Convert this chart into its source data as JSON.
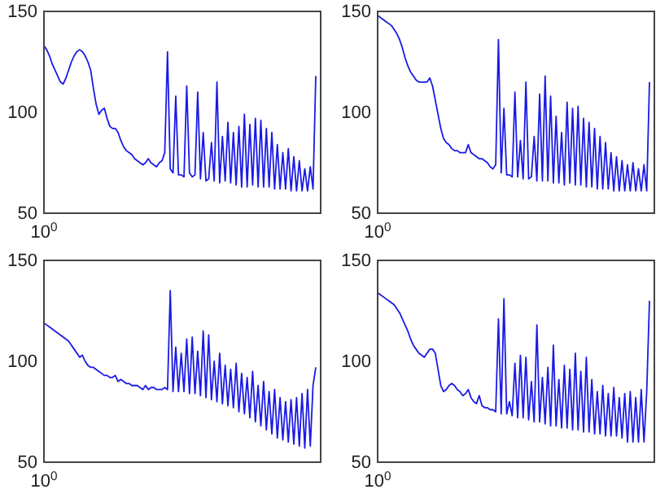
{
  "chart_data": [
    {
      "type": "line",
      "color": "#1a1ae6",
      "ylim": [
        50,
        150
      ],
      "yticks": [
        50,
        100,
        150
      ],
      "categories": [
        "10$^{0}$",
        null,
        null,
        null,
        null,
        null,
        null,
        null,
        null,
        null,
        null,
        null,
        null,
        null,
        null,
        null,
        null,
        null,
        null,
        null,
        null,
        null,
        null,
        null,
        null,
        null,
        null,
        null,
        null,
        null,
        null,
        null,
        null,
        null,
        null,
        null,
        null,
        null,
        null,
        null,
        null,
        null,
        null,
        null,
        null,
        null,
        null,
        null,
        null,
        null,
        null,
        null,
        null,
        null,
        null,
        null,
        null,
        null,
        null,
        null,
        null,
        null,
        null,
        null,
        null,
        null,
        null,
        null,
        null,
        null,
        null,
        null,
        null,
        null,
        null,
        null,
        null,
        null,
        null,
        null,
        null,
        null,
        null,
        null,
        null,
        null,
        null,
        null,
        null,
        null,
        null,
        null,
        null,
        null,
        null,
        null,
        null,
        null,
        null,
        null
      ],
      "values": [
        133,
        131,
        128,
        124,
        121,
        118,
        115,
        114,
        117,
        121,
        125,
        128,
        130,
        131,
        130,
        128,
        125,
        121,
        112,
        104,
        99,
        101,
        102,
        97,
        93,
        92,
        92,
        90,
        86,
        83,
        81,
        80,
        79,
        77,
        76,
        75,
        74,
        75,
        77,
        75,
        74,
        73,
        75,
        76,
        80,
        130,
        72,
        70,
        108,
        69,
        69,
        68,
        113,
        70,
        68,
        69,
        110,
        67,
        90,
        66,
        67,
        85,
        66,
        115,
        65,
        88,
        66,
        95,
        65,
        90,
        64,
        93,
        63,
        99,
        63,
        94,
        64,
        97,
        63,
        96,
        63,
        92,
        63,
        90,
        62,
        84,
        62,
        80,
        62,
        82,
        61,
        78,
        61,
        76,
        61,
        72,
        61,
        73,
        62,
        118
      ]
    },
    {
      "type": "line",
      "color": "#1a1ae6",
      "ylim": [
        50,
        150
      ],
      "yticks": [
        50,
        100,
        150
      ],
      "categories": [
        "10$^{0}$",
        null,
        null,
        null,
        null,
        null,
        null,
        null,
        null,
        null,
        null,
        null,
        null,
        null,
        null,
        null,
        null,
        null,
        null,
        null,
        null,
        null,
        null,
        null,
        null,
        null,
        null,
        null,
        null,
        null,
        null,
        null,
        null,
        null,
        null,
        null,
        null,
        null,
        null,
        null,
        null,
        null,
        null,
        null,
        null,
        null,
        null,
        null,
        null,
        null,
        null,
        null,
        null,
        null,
        null,
        null,
        null,
        null,
        null,
        null,
        null,
        null,
        null,
        null,
        null,
        null,
        null,
        null,
        null,
        null,
        null,
        null,
        null,
        null,
        null,
        null,
        null,
        null,
        null,
        null,
        null,
        null,
        null,
        null,
        null,
        null,
        null,
        null,
        null,
        null,
        null,
        null,
        null,
        null,
        null,
        null,
        null,
        null,
        null,
        null
      ],
      "values": [
        148,
        147,
        146,
        145,
        144,
        143,
        141,
        139,
        136,
        132,
        127,
        123,
        120,
        118,
        116,
        115,
        115,
        115,
        115,
        117,
        113,
        106,
        99,
        92,
        87,
        85,
        84,
        82,
        81,
        81,
        80,
        80,
        80,
        84,
        80,
        79,
        78,
        77,
        77,
        76,
        75,
        73,
        72,
        74,
        136,
        70,
        102,
        69,
        69,
        68,
        110,
        68,
        86,
        67,
        115,
        67,
        68,
        88,
        66,
        109,
        66,
        118,
        66,
        108,
        65,
        98,
        65,
        90,
        64,
        105,
        65,
        102,
        64,
        103,
        64,
        97,
        63,
        95,
        63,
        92,
        62,
        88,
        62,
        85,
        62,
        80,
        61,
        78,
        61,
        76,
        61,
        74,
        61,
        75,
        61,
        72,
        61,
        74,
        61,
        115
      ]
    },
    {
      "type": "line",
      "color": "#1a1ae6",
      "ylim": [
        50,
        150
      ],
      "yticks": [
        50,
        100,
        150
      ],
      "categories": [
        "10$^{0}$",
        null,
        null,
        null,
        null,
        null,
        null,
        null,
        null,
        null,
        null,
        null,
        null,
        null,
        null,
        null,
        null,
        null,
        null,
        null,
        null,
        null,
        null,
        null,
        null,
        null,
        null,
        null,
        null,
        null,
        null,
        null,
        null,
        null,
        null,
        null,
        null,
        null,
        null,
        null,
        null,
        null,
        null,
        null,
        null,
        null,
        null,
        null,
        null,
        null,
        null,
        null,
        null,
        null,
        null,
        null,
        null,
        null,
        null,
        null,
        null,
        null,
        null,
        null,
        null,
        null,
        null,
        null,
        null,
        null,
        null,
        null,
        null,
        null,
        null,
        null,
        null,
        null,
        null,
        null,
        null,
        null,
        null,
        null,
        null,
        null,
        null,
        null,
        null,
        null,
        null,
        null,
        null,
        null,
        null,
        null,
        null,
        null,
        null,
        null
      ],
      "values": [
        119,
        118,
        117,
        116,
        115,
        114,
        113,
        112,
        111,
        110,
        108,
        106,
        104,
        102,
        103,
        100,
        98,
        97,
        97,
        96,
        95,
        94,
        93,
        93,
        92,
        92,
        93,
        90,
        91,
        90,
        89,
        89,
        88,
        88,
        88,
        87,
        86,
        88,
        86,
        87,
        87,
        86,
        86,
        86,
        87,
        86,
        135,
        85,
        107,
        85,
        104,
        85,
        111,
        84,
        112,
        84,
        105,
        83,
        115,
        82,
        113,
        81,
        100,
        80,
        104,
        79,
        98,
        78,
        96,
        77,
        99,
        75,
        94,
        74,
        92,
        72,
        95,
        70,
        88,
        68,
        90,
        66,
        85,
        64,
        86,
        62,
        82,
        61,
        80,
        60,
        81,
        59,
        82,
        58,
        84,
        57,
        86,
        58,
        88,
        97
      ]
    },
    {
      "type": "line",
      "color": "#1a1ae6",
      "ylim": [
        50,
        150
      ],
      "yticks": [
        50,
        100,
        150
      ],
      "categories": [
        "10$^{0}$",
        null,
        null,
        null,
        null,
        null,
        null,
        null,
        null,
        null,
        null,
        null,
        null,
        null,
        null,
        null,
        null,
        null,
        null,
        null,
        null,
        null,
        null,
        null,
        null,
        null,
        null,
        null,
        null,
        null,
        null,
        null,
        null,
        null,
        null,
        null,
        null,
        null,
        null,
        null,
        null,
        null,
        null,
        null,
        null,
        null,
        null,
        null,
        null,
        null,
        null,
        null,
        null,
        null,
        null,
        null,
        null,
        null,
        null,
        null,
        null,
        null,
        null,
        null,
        null,
        null,
        null,
        null,
        null,
        null,
        null,
        null,
        null,
        null,
        null,
        null,
        null,
        null,
        null,
        null,
        null,
        null,
        null,
        null,
        null,
        null,
        null,
        null,
        null,
        null,
        null,
        null,
        null,
        null,
        null,
        null,
        null,
        null,
        null,
        null
      ],
      "values": [
        134,
        133,
        132,
        131,
        130,
        129,
        128,
        126,
        124,
        121,
        118,
        115,
        111,
        108,
        106,
        104,
        103,
        102,
        104,
        106,
        106,
        104,
        96,
        88,
        85,
        86,
        88,
        89,
        88,
        86,
        85,
        83,
        84,
        86,
        82,
        80,
        79,
        83,
        78,
        77,
        77,
        76,
        76,
        75,
        121,
        74,
        131,
        74,
        80,
        73,
        99,
        72,
        103,
        72,
        102,
        71,
        90,
        70,
        118,
        70,
        92,
        69,
        97,
        68,
        108,
        68,
        91,
        67,
        98,
        67,
        96,
        66,
        104,
        66,
        95,
        65,
        102,
        65,
        91,
        64,
        85,
        64,
        88,
        63,
        84,
        63,
        87,
        63,
        82,
        62,
        84,
        60,
        85,
        60,
        82,
        60,
        86,
        60,
        85,
        130
      ]
    }
  ]
}
